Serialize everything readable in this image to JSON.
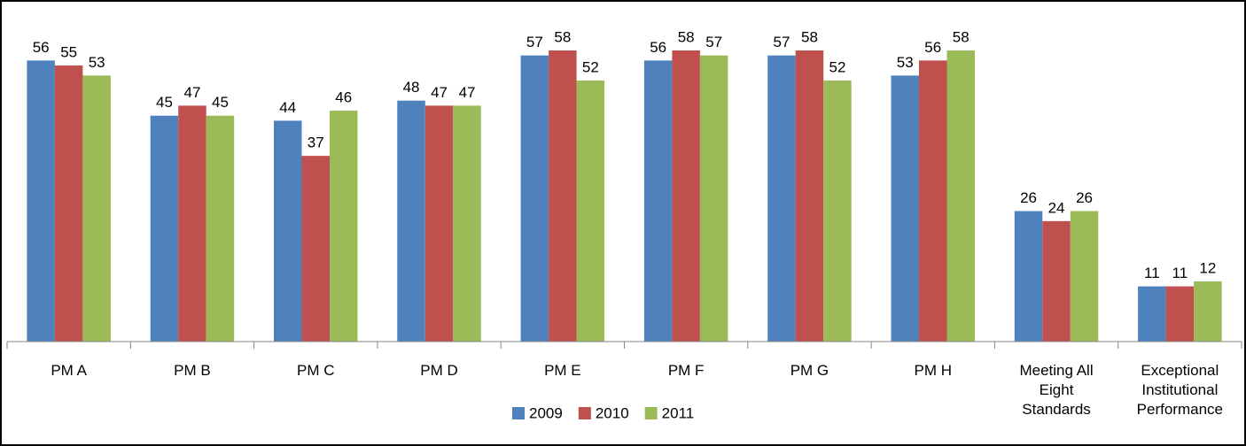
{
  "chart_data": {
    "type": "bar",
    "categories": [
      "PM A",
      "PM B",
      "PM C",
      "PM D",
      "PM E",
      "PM F",
      "PM G",
      "PM H",
      "Meeting All Eight Standards",
      "Exceptional Institutional Performance"
    ],
    "series": [
      {
        "name": "2009",
        "color": "#4f81bd",
        "values": [
          56,
          45,
          44,
          48,
          57,
          56,
          57,
          53,
          26,
          11
        ]
      },
      {
        "name": "2010",
        "color": "#c0504d",
        "values": [
          55,
          47,
          37,
          47,
          58,
          58,
          58,
          56,
          24,
          11
        ]
      },
      {
        "name": "2011",
        "color": "#9bbb59",
        "values": [
          53,
          45,
          46,
          47,
          52,
          57,
          52,
          58,
          26,
          12
        ]
      }
    ],
    "legend": "bottom"
  }
}
